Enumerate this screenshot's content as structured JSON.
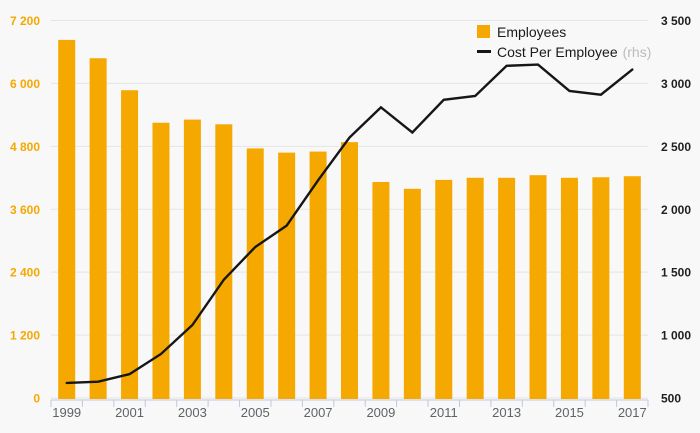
{
  "colors": {
    "background": "#f8f8f8",
    "bar": "#F5A800",
    "line": "#161616",
    "gridline": "#e5e5e5",
    "bottom_axis": "#bfc8de",
    "left_axis_text": "#F5A800",
    "right_axis_text": "#1f1f1f",
    "x_axis_text": "#5f6368",
    "rhs_text": "#b9bcc0"
  },
  "legend": {
    "employees_label": "Employees",
    "cost_label": "Cost Per Employee",
    "cost_suffix": "(rhs)"
  },
  "chart_data": {
    "type": "bar",
    "title": "",
    "categories": [
      "1999",
      "2000",
      "2001",
      "2002",
      "2003",
      "2004",
      "2005",
      "2006",
      "2007",
      "2008",
      "2009",
      "2010",
      "2011",
      "2012",
      "2013",
      "2014",
      "2015",
      "2016",
      "2017"
    ],
    "series": [
      {
        "name": "Employees",
        "type": "bar",
        "axis": "left",
        "color": "#F5A800",
        "values": [
          6830,
          6480,
          5870,
          5250,
          5310,
          5220,
          4760,
          4680,
          4700,
          4880,
          4120,
          3990,
          4160,
          4200,
          4200,
          4250,
          4200,
          4210,
          4230
        ]
      },
      {
        "name": "Cost Per Employee",
        "suffix": "(rhs)",
        "type": "line",
        "axis": "right",
        "color": "#161616",
        "values": [
          620,
          630,
          690,
          850,
          1080,
          1440,
          1700,
          1870,
          2230,
          2570,
          2810,
          2610,
          2870,
          2900,
          3140,
          3150,
          2940,
          2910,
          3110
        ]
      }
    ],
    "left_axis": {
      "min": 0,
      "max": 7200,
      "step": 1200,
      "labels": [
        "0",
        "1 200",
        "2 400",
        "3 600",
        "4 800",
        "6 000",
        "7 200"
      ]
    },
    "right_axis": {
      "min": 500,
      "max": 3500,
      "step": 500,
      "labels": [
        "500",
        "1 000",
        "1 500",
        "2 000",
        "2 500",
        "3 000",
        "3 500"
      ]
    },
    "x_axis": {
      "tick_labels": [
        "1999",
        "2001",
        "2003",
        "2005",
        "2007",
        "2009",
        "2011",
        "2013",
        "2015",
        "2017"
      ]
    },
    "legend_position": "top-right",
    "grid": true
  }
}
